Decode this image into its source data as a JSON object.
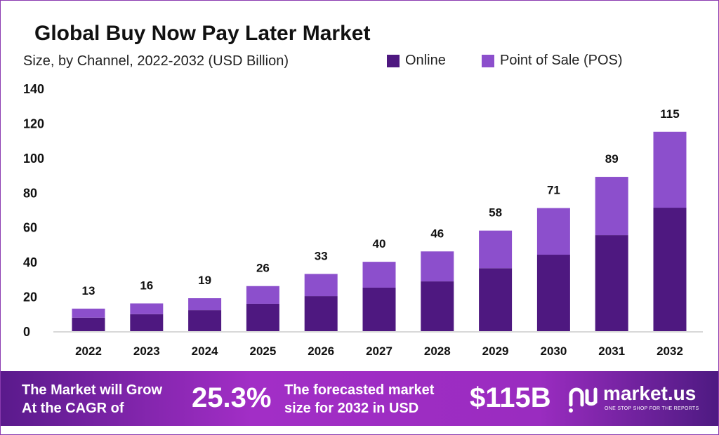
{
  "chart_data": {
    "type": "bar",
    "stacked": true,
    "title": "Global Buy Now Pay Later Market",
    "subtitle": "Size, by Channel, 2022-2032 (USD Billion)",
    "categories": [
      "2022",
      "2023",
      "2024",
      "2025",
      "2026",
      "2027",
      "2028",
      "2029",
      "2030",
      "2031",
      "2032"
    ],
    "series": [
      {
        "name": "Online",
        "color": "#4e1880",
        "values": [
          7.8,
          9.8,
          12.1,
          15.8,
          20.2,
          25.1,
          28.7,
          36.3,
          44.1,
          55.4,
          71.2
        ]
      },
      {
        "name": "Point of Sale (POS)",
        "color": "#8c4fcc",
        "values": [
          5.2,
          6.2,
          6.9,
          10.2,
          12.8,
          14.9,
          17.3,
          21.7,
          26.9,
          33.6,
          43.8
        ]
      }
    ],
    "totals": [
      "13",
      "16",
      "19",
      "26",
      "33",
      "40",
      "46",
      "58",
      "71",
      "89",
      "115"
    ],
    "yticks": [
      "0",
      "20",
      "40",
      "60",
      "80",
      "100",
      "120",
      "140"
    ],
    "ylim": [
      0,
      140
    ],
    "grid": false,
    "legend_position": "top"
  },
  "banner": {
    "cagr_text_1": "The Market will Grow",
    "cagr_text_2": "At the CAGR of",
    "cagr_value": "25.3%",
    "forecast_text_1": "The forecasted market",
    "forecast_text_2": "size for 2032 in USD",
    "forecast_value": "$115B",
    "logo_name": "market.us",
    "logo_tagline": "ONE STOP SHOP FOR THE REPORTS"
  }
}
